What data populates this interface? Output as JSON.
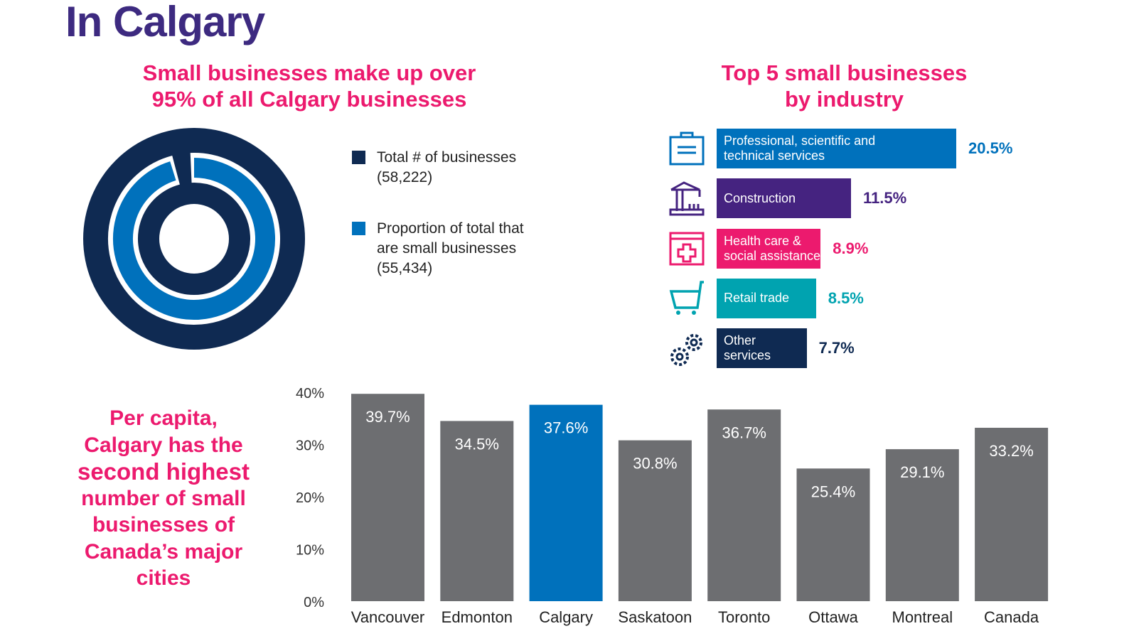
{
  "title": "In Calgary",
  "donut_section": {
    "heading_line1": "Small businesses make up over",
    "heading_line2": "95% of all Calgary businesses",
    "legend": [
      {
        "line1": "Total # of businesses",
        "line2": "(58,222)",
        "line3": "",
        "color": "#0f2a52"
      },
      {
        "line1": "Proportion of total that",
        "line2": "are small businesses",
        "line3": "(55,434)",
        "color": "#0071bc"
      }
    ]
  },
  "industry_section": {
    "heading_line1": "Top 5 small businesses",
    "heading_line2": "by industry"
  },
  "per_capita": {
    "line1": "Per capita,",
    "line2": "Calgary has the",
    "line3": "second highest",
    "line4": "number of small",
    "line5": "businesses of",
    "line6": "Canada’s major",
    "line7": "cities"
  },
  "chart_data": [
    {
      "type": "pie",
      "categories": [
        "Total # of businesses",
        "Proportion of total that are small businesses"
      ],
      "values": [
        58222,
        55434
      ],
      "colors": [
        "#0f2a52",
        "#0071bc"
      ]
    },
    {
      "type": "bar",
      "orientation": "horizontal",
      "categories": [
        {
          "line1": "Professional, scientific and",
          "line2": "technical services",
          "icon": "briefcase-icon"
        },
        {
          "line1": "Construction",
          "line2": "",
          "icon": "crane-icon"
        },
        {
          "line1": "Health care &",
          "line2": "social assistance",
          "icon": "medical-kit-icon"
        },
        {
          "line1": "Retail trade",
          "line2": "",
          "icon": "shopping-cart-icon"
        },
        {
          "line1": "Other",
          "line2": "services",
          "icon": "gears-icon"
        }
      ],
      "values": [
        20.5,
        11.5,
        8.9,
        8.5,
        7.7
      ],
      "labels": [
        "20.5%",
        "11.5%",
        "8.9%",
        "8.5%",
        "7.7%"
      ],
      "colors": [
        "#0071bc",
        "#452380",
        "#ec1a6e",
        "#00a3b0",
        "#0f2a52"
      ]
    },
    {
      "type": "bar",
      "categories": [
        "Vancouver",
        "Edmonton",
        "Calgary",
        "Saskatoon",
        "Toronto",
        "Ottawa",
        "Montreal",
        "Canada"
      ],
      "values": [
        39.7,
        34.5,
        37.6,
        30.8,
        36.7,
        25.4,
        29.1,
        33.2
      ],
      "labels": [
        "39.7%",
        "34.5%",
        "37.6%",
        "30.8%",
        "36.7%",
        "25.4%",
        "29.1%",
        "33.2%"
      ],
      "yticks": [
        "0%",
        "10%",
        "20%",
        "30%",
        "40%"
      ],
      "ylim": [
        0,
        40
      ],
      "grid": false,
      "bar_color": "#6d6e71",
      "highlight": "Calgary",
      "highlight_color": "#0071bc"
    }
  ]
}
